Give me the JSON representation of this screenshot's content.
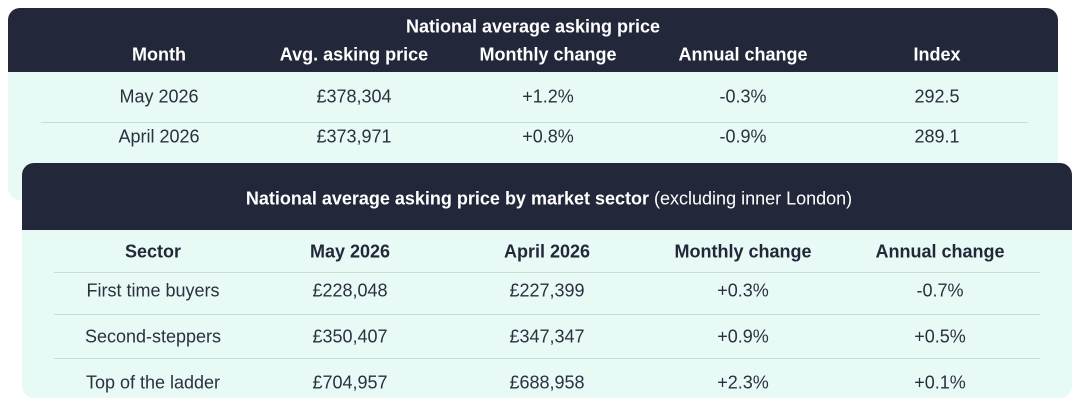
{
  "table1": {
    "title": "National average asking price",
    "columns": [
      "Month",
      "Avg. asking price",
      "Monthly change",
      "Annual change",
      "Index"
    ],
    "rows": [
      [
        "May 2026",
        "£378,304",
        "+1.2%",
        "-0.3%",
        "292.5"
      ],
      [
        "April 2026",
        "£373,971",
        "+0.8%",
        "-0.9%",
        "289.1"
      ]
    ]
  },
  "table2": {
    "title": "National average asking price by market sector",
    "title_note": "(excluding inner London)",
    "columns": [
      "Sector",
      "May 2026",
      "April 2026",
      "Monthly change",
      "Annual change"
    ],
    "rows": [
      [
        "First time buyers",
        "£228,048",
        "£227,399",
        "+0.3%",
        "-0.7%"
      ],
      [
        "Second-steppers",
        "£350,407",
        "£347,347",
        "+0.9%",
        "+0.5%"
      ],
      [
        "Top of the ladder",
        "£704,957",
        "£688,958",
        "+2.3%",
        "+0.1%"
      ]
    ]
  }
}
